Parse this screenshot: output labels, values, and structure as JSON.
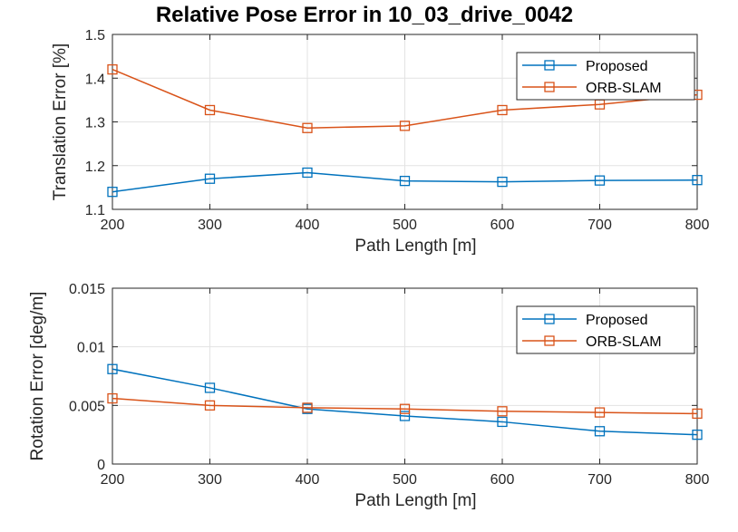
{
  "figure_title": "Relative Pose Error in 10_03_drive_0042",
  "chart_data": [
    {
      "type": "line",
      "title": "Relative Pose Error in 10_03_drive_0042",
      "xlabel": "Path Length [m]",
      "ylabel": "Translation Error [%]",
      "x": [
        200,
        300,
        400,
        500,
        600,
        700,
        800
      ],
      "xlim": [
        200,
        800
      ],
      "ylim": [
        1.1,
        1.5
      ],
      "xticks": [
        "200",
        "300",
        "400",
        "500",
        "600",
        "700",
        "800"
      ],
      "yticks": [
        {
          "value": 1.1,
          "label": "1.1"
        },
        {
          "value": 1.2,
          "label": "1.2"
        },
        {
          "value": 1.3,
          "label": "1.3"
        },
        {
          "value": 1.4,
          "label": "1.4"
        },
        {
          "value": 1.5,
          "label": "1.5"
        }
      ],
      "grid": true,
      "legend_position": "top-right",
      "series": [
        {
          "name": "Proposed",
          "color": "#0072bd",
          "marker": "square",
          "values": [
            1.14,
            1.17,
            1.184,
            1.165,
            1.163,
            1.166,
            1.167
          ]
        },
        {
          "name": "ORB-SLAM",
          "color": "#d95319",
          "marker": "square",
          "values": [
            1.42,
            1.327,
            1.286,
            1.291,
            1.327,
            1.34,
            1.362
          ]
        }
      ]
    },
    {
      "type": "line",
      "title": "",
      "xlabel": "Path Length [m]",
      "ylabel": "Rotation Error [deg/m]",
      "x": [
        200,
        300,
        400,
        500,
        600,
        700,
        800
      ],
      "xlim": [
        200,
        800
      ],
      "ylim": [
        0,
        0.015
      ],
      "xticks": [
        "200",
        "300",
        "400",
        "500",
        "600",
        "700",
        "800"
      ],
      "yticks": [
        {
          "value": 0,
          "label": "0"
        },
        {
          "value": 0.005,
          "label": "0.005"
        },
        {
          "value": 0.01,
          "label": "0.01"
        },
        {
          "value": 0.015,
          "label": "0.015"
        }
      ],
      "grid": true,
      "legend_position": "top-right",
      "series": [
        {
          "name": "Proposed",
          "color": "#0072bd",
          "marker": "square",
          "values": [
            0.0081,
            0.0065,
            0.0047,
            0.0041,
            0.0036,
            0.0028,
            0.0025
          ]
        },
        {
          "name": "ORB-SLAM",
          "color": "#d95319",
          "marker": "square",
          "values": [
            0.0056,
            0.005,
            0.0048,
            0.0047,
            0.0045,
            0.0044,
            0.0043
          ]
        }
      ]
    }
  ]
}
